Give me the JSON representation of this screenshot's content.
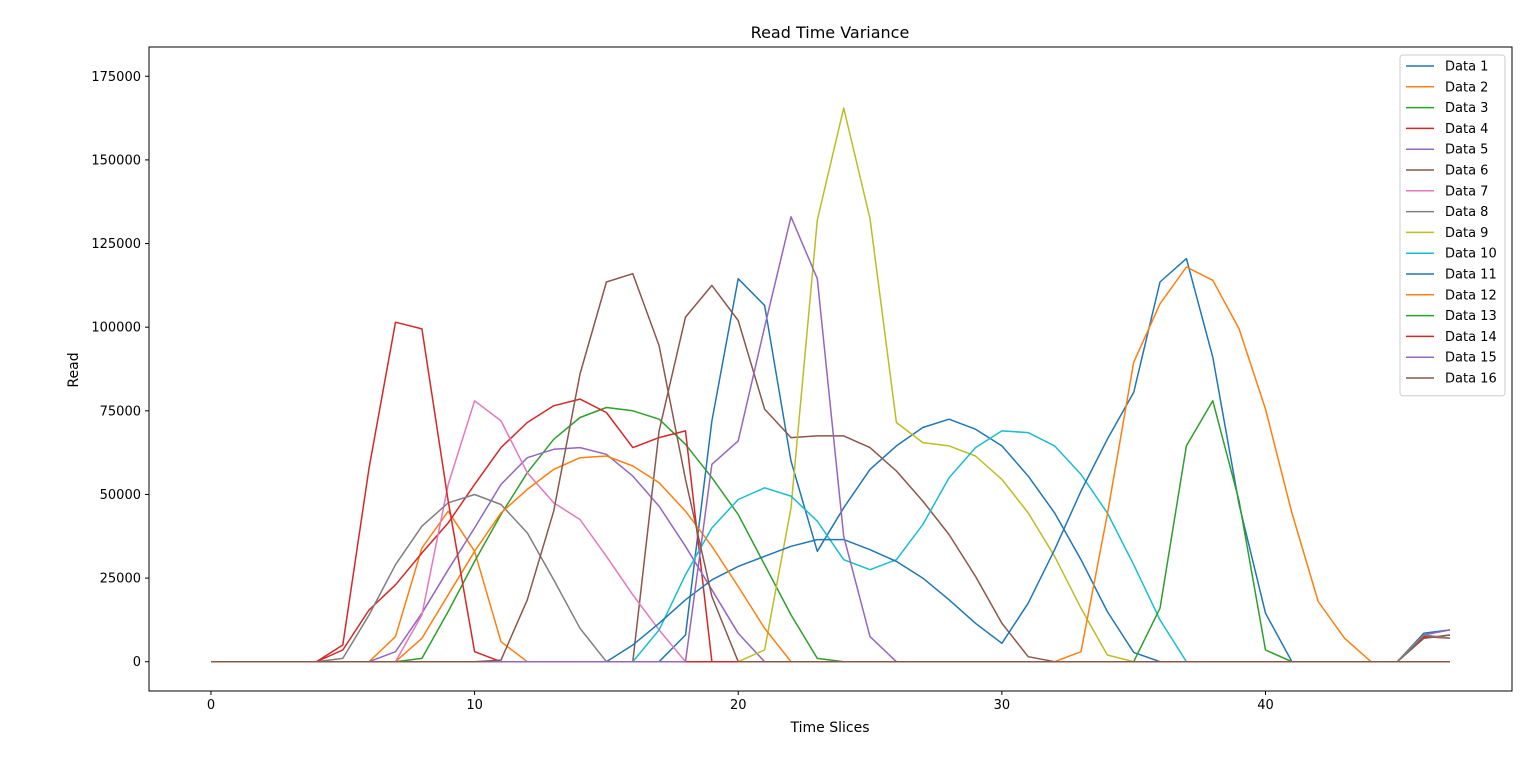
{
  "chart_data": {
    "type": "line",
    "title": "Read Time Variance",
    "xlabel": "Time Slices",
    "ylabel": "Read",
    "xlim": [
      -2.35,
      49.35
    ],
    "ylim": [
      -8750,
      183750
    ],
    "xticks": [
      0,
      10,
      20,
      30,
      40
    ],
    "yticks": [
      0,
      25000,
      50000,
      75000,
      100000,
      125000,
      150000,
      175000
    ],
    "ytick_labels": [
      "0",
      "25000",
      "50000",
      "75000",
      "100000",
      "125000",
      "150000",
      "175000"
    ],
    "grid": false,
    "legend_position": "top-right",
    "x": [
      0,
      1,
      2,
      3,
      4,
      5,
      6,
      7,
      8,
      9,
      10,
      11,
      12,
      13,
      14,
      15,
      16,
      17,
      18,
      19,
      20,
      21,
      22,
      23,
      24,
      25,
      26,
      27,
      28,
      29,
      30,
      31,
      32,
      33,
      34,
      35,
      36,
      37,
      38,
      39,
      40,
      41,
      42,
      43,
      44,
      45,
      46,
      47
    ],
    "series": [
      {
        "name": "Data 1",
        "color": "#1f77b4",
        "values": [
          0,
          0,
          0,
          0,
          0,
          0,
          0,
          0,
          0,
          0,
          0,
          0,
          0,
          0,
          0,
          0,
          0,
          0,
          8000,
          72000,
          114500,
          106500,
          60000,
          33000,
          46000,
          57500,
          64500,
          70000,
          72500,
          69500,
          64500,
          55500,
          44500,
          30500,
          15000,
          2800,
          0,
          0,
          0,
          0,
          0,
          0,
          0,
          0,
          0,
          0,
          8500,
          9500
        ]
      },
      {
        "name": "Data 2",
        "color": "#ff7f0e",
        "values": [
          0,
          0,
          0,
          0,
          0,
          0,
          0,
          7500,
          34000,
          45000,
          33000,
          6000,
          0,
          0,
          0,
          0,
          0,
          0,
          0,
          0,
          0,
          0,
          0,
          0,
          0,
          0,
          0,
          0,
          0,
          0,
          0,
          0,
          0,
          0,
          0,
          0,
          0,
          0,
          0,
          0,
          0,
          0,
          0,
          0,
          0,
          0,
          8000,
          7000
        ]
      },
      {
        "name": "Data 3",
        "color": "#2ca02c",
        "values": [
          0,
          0,
          0,
          0,
          0,
          0,
          0,
          0,
          1000,
          15000,
          30000,
          44000,
          56500,
          66500,
          73000,
          76000,
          75000,
          72500,
          65000,
          55000,
          44000,
          29000,
          14000,
          1000,
          0,
          0,
          0,
          0,
          0,
          0,
          0,
          0,
          0,
          0,
          0,
          0,
          0,
          0,
          0,
          0,
          0,
          0,
          0,
          0,
          0,
          0,
          7000,
          8000
        ]
      },
      {
        "name": "Data 4",
        "color": "#d62728",
        "values": [
          0,
          0,
          0,
          0,
          0,
          3500,
          15500,
          23000,
          32500,
          41500,
          53000,
          64000,
          71500,
          76500,
          78500,
          74500,
          64000,
          67000,
          69000,
          0,
          0,
          0,
          0,
          0,
          0,
          0,
          0,
          0,
          0,
          0,
          0,
          0,
          0,
          0,
          0,
          0,
          0,
          0,
          0,
          0,
          0,
          0,
          0,
          0,
          0,
          0,
          7500,
          7000
        ]
      },
      {
        "name": "Data 5",
        "color": "#9467bd",
        "values": [
          0,
          0,
          0,
          0,
          0,
          0,
          0,
          3000,
          14500,
          27500,
          40000,
          53000,
          61000,
          63500,
          64000,
          62000,
          55500,
          46500,
          34500,
          21500,
          8500,
          0,
          0,
          0,
          0,
          0,
          0,
          0,
          0,
          0,
          0,
          0,
          0,
          0,
          0,
          0,
          0,
          0,
          0,
          0,
          0,
          0,
          0,
          0,
          0,
          0,
          8000,
          9500
        ]
      },
      {
        "name": "Data 6",
        "color": "#8c564b",
        "values": [
          0,
          0,
          0,
          0,
          0,
          0,
          0,
          0,
          0,
          0,
          0,
          0,
          0,
          0,
          0,
          0,
          0,
          69000,
          103000,
          112500,
          102000,
          75500,
          67000,
          67500,
          67500,
          64000,
          57000,
          48000,
          38000,
          25500,
          11500,
          1500,
          0,
          0,
          0,
          0,
          0,
          0,
          0,
          0,
          0,
          0,
          0,
          0,
          0,
          0,
          7000,
          8000
        ]
      },
      {
        "name": "Data 7",
        "color": "#e377c2",
        "values": [
          0,
          0,
          0,
          0,
          0,
          0,
          0,
          0,
          14000,
          53000,
          78000,
          72000,
          56500,
          47500,
          42500,
          31500,
          20000,
          9500,
          0,
          0,
          0,
          0,
          0,
          0,
          0,
          0,
          0,
          0,
          0,
          0,
          0,
          0,
          0,
          0,
          0,
          0,
          0,
          0,
          0,
          0,
          0,
          0,
          0,
          0,
          0,
          0,
          0,
          0
        ]
      },
      {
        "name": "Data 8",
        "color": "#7f7f7f",
        "values": [
          0,
          0,
          0,
          0,
          0,
          1000,
          14000,
          29000,
          40500,
          47500,
          50000,
          47000,
          38500,
          24500,
          10000,
          0,
          0,
          0,
          0,
          0,
          0,
          0,
          0,
          0,
          0,
          0,
          0,
          0,
          0,
          0,
          0,
          0,
          0,
          0,
          0,
          0,
          0,
          0,
          0,
          0,
          0,
          0,
          0,
          0,
          0,
          0,
          8000,
          7000
        ]
      },
      {
        "name": "Data 9",
        "color": "#bcbd22",
        "values": [
          0,
          0,
          0,
          0,
          0,
          0,
          0,
          0,
          0,
          0,
          0,
          0,
          0,
          0,
          0,
          0,
          0,
          0,
          0,
          0,
          0,
          3500,
          46000,
          132000,
          165500,
          132500,
          71500,
          65500,
          64500,
          61500,
          54500,
          44500,
          31500,
          16000,
          2000,
          0,
          0,
          0,
          0,
          0,
          0,
          0,
          0,
          0,
          0,
          0,
          0,
          0
        ]
      },
      {
        "name": "Data 10",
        "color": "#17becf",
        "values": [
          0,
          0,
          0,
          0,
          0,
          0,
          0,
          0,
          0,
          0,
          0,
          0,
          0,
          0,
          0,
          0,
          0,
          9500,
          26000,
          40000,
          48500,
          52000,
          49500,
          42000,
          30500,
          27500,
          30500,
          41000,
          55000,
          64000,
          69000,
          68500,
          64500,
          56000,
          44500,
          29000,
          12500,
          0,
          0,
          0,
          0,
          0,
          0,
          0,
          0,
          0,
          0,
          0
        ]
      },
      {
        "name": "Data 11",
        "color": "#1f77b4",
        "values": [
          0,
          0,
          0,
          0,
          0,
          0,
          0,
          0,
          0,
          0,
          0,
          0,
          0,
          0,
          0,
          0,
          5000,
          11500,
          18500,
          24500,
          28500,
          31500,
          34500,
          36500,
          36500,
          33500,
          30000,
          25000,
          18500,
          11500,
          5500,
          17500,
          33500,
          51000,
          66500,
          80500,
          113500,
          120500,
          91000,
          47000,
          14500,
          0,
          0,
          0,
          0,
          0,
          0,
          0
        ]
      },
      {
        "name": "Data 12",
        "color": "#ff7f0e",
        "values": [
          0,
          0,
          0,
          0,
          0,
          0,
          0,
          0,
          7000,
          20000,
          33000,
          44500,
          51500,
          57500,
          61000,
          61500,
          58500,
          53500,
          45000,
          34500,
          22500,
          10000,
          0,
          0,
          0,
          0,
          0,
          0,
          0,
          0,
          0,
          0,
          0,
          3000,
          44000,
          89500,
          107000,
          118000,
          114000,
          99500,
          75500,
          44500,
          18000,
          7000,
          0,
          0,
          0,
          0
        ]
      },
      {
        "name": "Data 13",
        "color": "#2ca02c",
        "values": [
          0,
          0,
          0,
          0,
          0,
          0,
          0,
          0,
          0,
          0,
          0,
          0,
          0,
          0,
          0,
          0,
          0,
          0,
          0,
          0,
          0,
          0,
          0,
          0,
          0,
          0,
          0,
          0,
          0,
          0,
          0,
          0,
          0,
          0,
          0,
          0,
          16000,
          64500,
          78000,
          48000,
          3500,
          0,
          0,
          0,
          0,
          0,
          0,
          0
        ]
      },
      {
        "name": "Data 14",
        "color": "#d62728",
        "values": [
          0,
          0,
          0,
          0,
          0,
          5000,
          58000,
          101500,
          99500,
          48000,
          3000,
          0,
          0,
          0,
          0,
          0,
          0,
          0,
          0,
          0,
          0,
          0,
          0,
          0,
          0,
          0,
          0,
          0,
          0,
          0,
          0,
          0,
          0,
          0,
          0,
          0,
          0,
          0,
          0,
          0,
          0,
          0,
          0,
          0,
          0,
          0,
          0,
          0
        ]
      },
      {
        "name": "Data 15",
        "color": "#9467bd",
        "values": [
          0,
          0,
          0,
          0,
          0,
          0,
          0,
          0,
          0,
          0,
          0,
          0,
          0,
          0,
          0,
          0,
          0,
          0,
          0,
          59000,
          66000,
          100000,
          133000,
          114500,
          37500,
          7500,
          0,
          0,
          0,
          0,
          0,
          0,
          0,
          0,
          0,
          0,
          0,
          0,
          0,
          0,
          0,
          0,
          0,
          0,
          0,
          0,
          0,
          0
        ]
      },
      {
        "name": "Data 16",
        "color": "#8c564b",
        "values": [
          0,
          0,
          0,
          0,
          0,
          0,
          0,
          0,
          0,
          0,
          0,
          500,
          18500,
          45000,
          86000,
          113500,
          116000,
          94500,
          54500,
          19500,
          0,
          0,
          0,
          0,
          0,
          0,
          0,
          0,
          0,
          0,
          0,
          0,
          0,
          0,
          0,
          0,
          0,
          0,
          0,
          0,
          0,
          0,
          0,
          0,
          0,
          0,
          0,
          0
        ]
      }
    ]
  }
}
